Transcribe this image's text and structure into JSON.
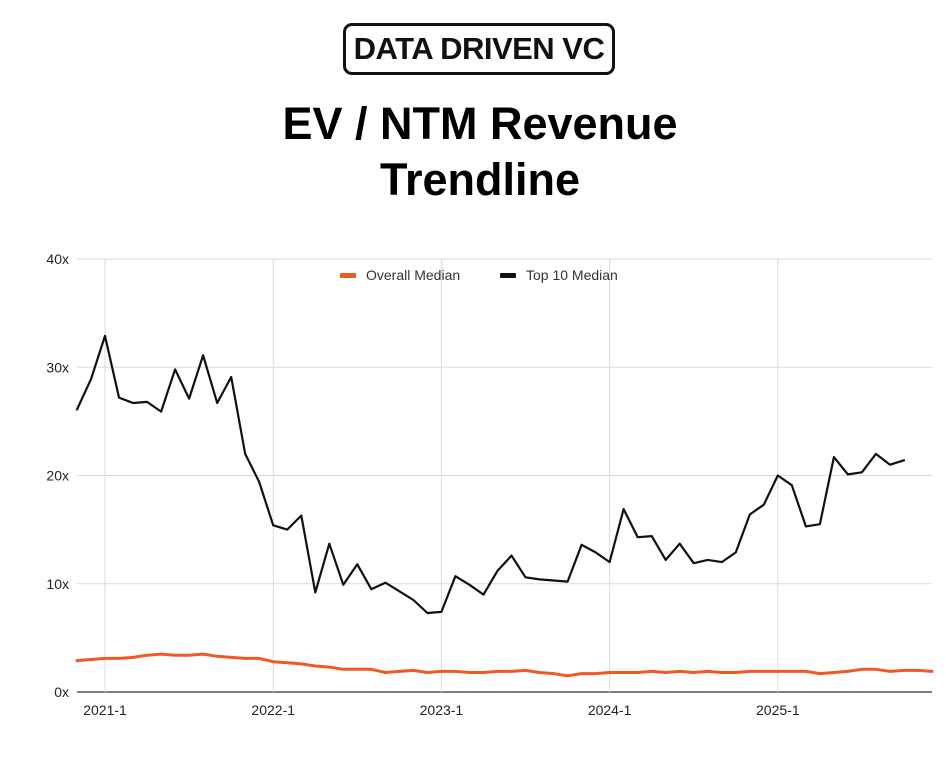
{
  "brand": {
    "logo_text": "DATA DRIVEN VC"
  },
  "header": {
    "title_line1": "EV / NTM Revenue",
    "title_line2": "Trendline"
  },
  "chart_data": {
    "type": "line",
    "title": "EV / NTM Revenue Trendline",
    "xlabel": "",
    "ylabel": "",
    "ylim": [
      0,
      40
    ],
    "yticks": [
      0,
      10,
      20,
      30,
      40
    ],
    "ytick_labels": [
      "0x",
      "10x",
      "20x",
      "30x",
      "40x"
    ],
    "x_start_month": "2020-11",
    "x_tick_labels": [
      "2021-1",
      "2022-1",
      "2023-1",
      "2024-1",
      "2025-1"
    ],
    "x_tick_month_index": [
      2,
      14,
      26,
      38,
      50
    ],
    "x_max_index": 61,
    "legend": {
      "position": "top",
      "entries": [
        "Overall Median",
        "Top 10 Median"
      ]
    },
    "series": [
      {
        "name": "Overall Median",
        "color": "#f05a22",
        "values": [
          2.9,
          3.0,
          3.1,
          3.1,
          3.2,
          3.4,
          3.5,
          3.4,
          3.4,
          3.5,
          3.3,
          3.2,
          3.1,
          3.1,
          2.8,
          2.7,
          2.6,
          2.4,
          2.3,
          2.1,
          2.1,
          2.1,
          1.8,
          1.9,
          2.0,
          1.8,
          1.9,
          1.9,
          1.8,
          1.8,
          1.9,
          1.9,
          2.0,
          1.8,
          1.7,
          1.5,
          1.7,
          1.7,
          1.8,
          1.8,
          1.8,
          1.9,
          1.8,
          1.9,
          1.8,
          1.9,
          1.8,
          1.8,
          1.9,
          1.9,
          1.9,
          1.9,
          1.9,
          1.7,
          1.8,
          1.9,
          2.1,
          2.1,
          1.9,
          2.0,
          2.0,
          1.9
        ]
      },
      {
        "name": "Top 10 Median",
        "color": "#111111",
        "values": [
          26.1,
          28.9,
          32.9,
          27.2,
          26.7,
          26.8,
          25.9,
          29.8,
          27.1,
          31.1,
          26.7,
          29.1,
          22.0,
          19.4,
          15.4,
          15.0,
          16.3,
          9.2,
          13.7,
          9.9,
          11.8,
          9.5,
          10.1,
          9.3,
          8.5,
          7.3,
          7.4,
          10.7,
          9.9,
          9.0,
          11.2,
          12.6,
          10.6,
          10.4,
          10.3,
          10.2,
          13.6,
          12.9,
          12.0,
          16.9,
          14.3,
          14.4,
          12.2,
          13.7,
          11.9,
          12.2,
          12.0,
          12.9,
          16.4,
          17.3,
          20.0,
          19.1,
          15.3,
          15.5,
          21.7,
          20.1,
          20.3,
          22.0,
          21.0,
          21.4
        ]
      }
    ]
  }
}
